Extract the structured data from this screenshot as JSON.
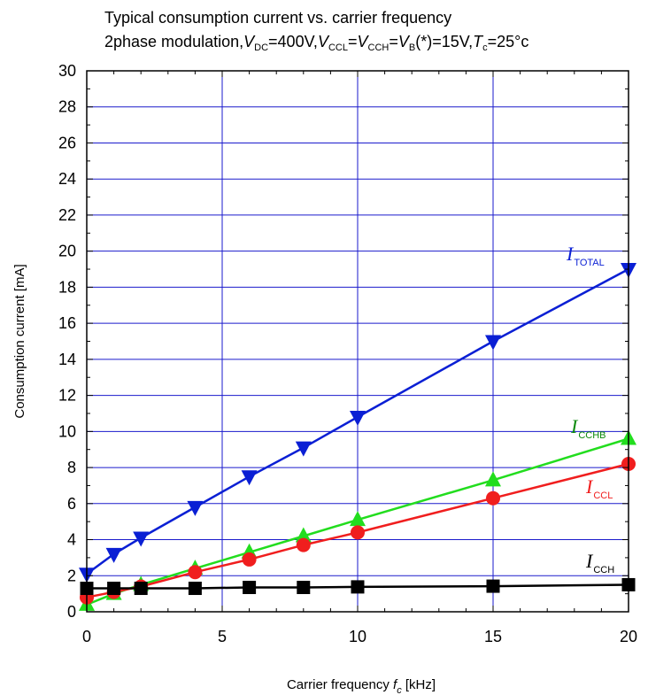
{
  "title": {
    "line1": "Typical consumption current vs. carrier frequency",
    "line2_prefix": "2phase modulation,",
    "vdc_symbol": "V",
    "vdc_sub": "DC",
    "vdc_value": "=400V,",
    "vccl_symbol": "V",
    "vccl_sub": "CCL",
    "eq1": "=",
    "vcch_symbol": "V",
    "vcch_sub": "CCH",
    "eq2": "=",
    "vb_symbol": "V",
    "vb_sub": "B",
    "vb_value": "(*)=15V,",
    "tc_symbol": "T",
    "tc_sub": "c",
    "tc_value": "=25°c"
  },
  "chart_data": {
    "type": "line",
    "xlabel": "Carrier frequency f [kHz]",
    "xlabel_main": "Carrier frequency ",
    "xlabel_symbol": "f",
    "xlabel_sub": "c",
    "xlabel_unit": " [kHz]",
    "ylabel": "Consumption current [mA]",
    "xlim": [
      0,
      20
    ],
    "ylim": [
      0,
      30
    ],
    "xticks": [
      0,
      5,
      10,
      15,
      20
    ],
    "yticks": [
      0,
      2,
      4,
      6,
      8,
      10,
      12,
      14,
      16,
      18,
      20,
      22,
      24,
      26,
      28,
      30
    ],
    "grid": true,
    "series": [
      {
        "name": "ITOTAL",
        "label_symbol": "I",
        "label_sub": "TOTAL",
        "color": "#0a1fd4",
        "marker": "triangle-down",
        "x": [
          0,
          1,
          2,
          4,
          6,
          8,
          10,
          15,
          20
        ],
        "y": [
          2.1,
          3.2,
          4.1,
          5.8,
          7.5,
          9.1,
          10.8,
          15.0,
          19.0
        ]
      },
      {
        "name": "ICCHB",
        "label_symbol": "I",
        "label_sub": "CCHB",
        "color": "#22dd1e",
        "label_color": "#0a8a0a",
        "marker": "triangle-up",
        "x": [
          0,
          1,
          2,
          4,
          6,
          8,
          10,
          15,
          20
        ],
        "y": [
          0.4,
          1.0,
          1.5,
          2.4,
          3.3,
          4.2,
          5.1,
          7.3,
          9.6
        ]
      },
      {
        "name": "ICCL",
        "label_symbol": "I",
        "label_sub": "CCL",
        "color": "#f01e1e",
        "marker": "circle",
        "x": [
          0,
          1,
          2,
          4,
          6,
          8,
          10,
          15,
          20
        ],
        "y": [
          0.8,
          1.1,
          1.4,
          2.2,
          2.9,
          3.7,
          4.4,
          6.3,
          8.2
        ]
      },
      {
        "name": "ICCH",
        "label_symbol": "I",
        "label_sub": "CCH",
        "color": "#000000",
        "marker": "square",
        "x": [
          0,
          1,
          2,
          4,
          6,
          8,
          10,
          15,
          20
        ],
        "y": [
          1.3,
          1.3,
          1.3,
          1.3,
          1.35,
          1.35,
          1.38,
          1.42,
          1.5
        ]
      }
    ]
  },
  "colors": {
    "grid": "#1a1acc",
    "axis": "#000000"
  }
}
